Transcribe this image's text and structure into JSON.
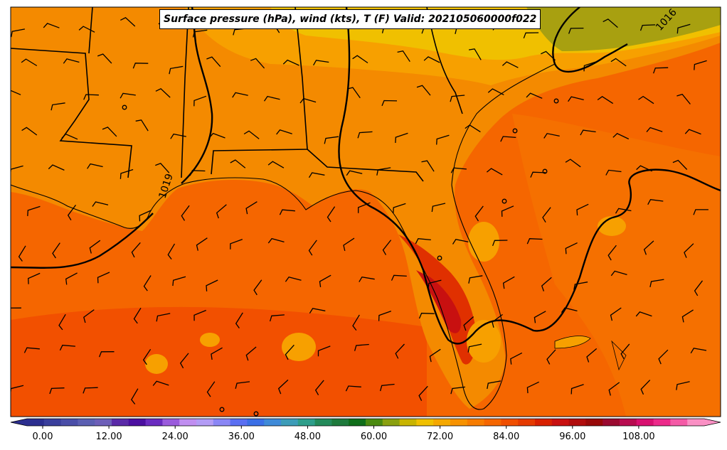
{
  "title": "Surface pressure (hPa), wind (kts), T (F) Valid: 202105060000f022",
  "isobar_labels": [
    "1016",
    "1019"
  ],
  "colorbar": {
    "ticks": [
      "0.00",
      "12.00",
      "24.00",
      "36.00",
      "48.00",
      "60.00",
      "72.00",
      "84.00",
      "96.00",
      "108.00"
    ],
    "colors": [
      "#2b2e8f",
      "#3a3f9c",
      "#4a4ea8",
      "#5b5fb2",
      "#6d5fb8",
      "#5a2aa8",
      "#4b0fa0",
      "#6a2bc0",
      "#9a5bdc",
      "#c08ef0",
      "#b39cf5",
      "#8a86f5",
      "#5a6ff2",
      "#3b6fe6",
      "#3f8ad8",
      "#3d9cb8",
      "#2e9e8a",
      "#238a5a",
      "#1e7a3c",
      "#0f6e1a",
      "#4a8a10",
      "#8aa010",
      "#c8b400",
      "#f0c000",
      "#f5a800",
      "#f79200",
      "#f77c00",
      "#f56600",
      "#f04e00",
      "#e53a00",
      "#d82000",
      "#c81010",
      "#b00c0c",
      "#980808",
      "#9a0a30",
      "#b80c50",
      "#d81070",
      "#ec2a8a",
      "#f45aa6",
      "#fa90c4"
    ]
  },
  "colors": {
    "land_warm": "#f48a00",
    "land_mid": "#f7a000",
    "land_cool": "#f0c000",
    "land_coolest": "#a8a010",
    "ocean": "#f56600",
    "ocean_warm": "#f25000",
    "hot": "#e03000",
    "hotter": "#c81010"
  }
}
